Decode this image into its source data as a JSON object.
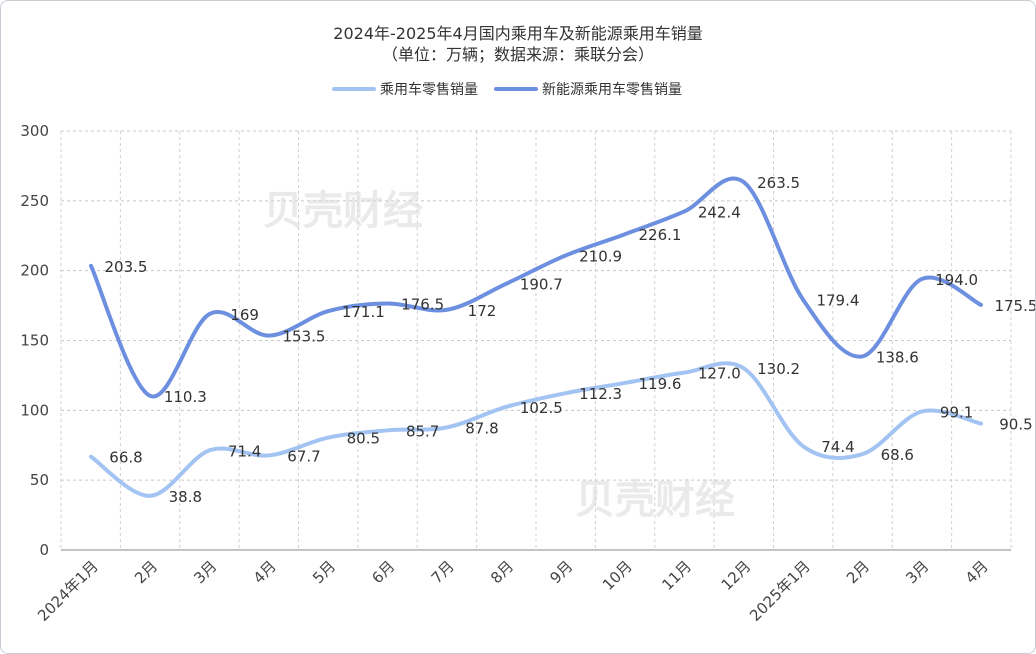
{
  "chart_data": {
    "type": "line",
    "title": "2024年-2025年4月国内乘用车及新能源乘用车销量",
    "subtitle": "（单位：万辆；数据来源：乘联分会）",
    "categories": [
      "2024年1月",
      "2月",
      "3月",
      "4月",
      "5月",
      "6月",
      "7月",
      "8月",
      "9月",
      "10月",
      "11月",
      "12月",
      "2025年1月",
      "2月",
      "3月",
      "4月"
    ],
    "series": [
      {
        "name": "乘用车零售销量",
        "color": "#a3c4f2",
        "values": [
          66.8,
          38.8,
          71.4,
          67.7,
          80.5,
          85.7,
          87.8,
          102.5,
          112.3,
          119.6,
          127.0,
          130.2,
          74.4,
          68.6,
          99.1,
          90.5
        ]
      },
      {
        "name": "新能源乘用车零售销量",
        "color": "#6d8fe0",
        "values": [
          203.5,
          110.3,
          169,
          153.5,
          171.1,
          176.5,
          172,
          190.7,
          210.9,
          226.1,
          242.4,
          263.5,
          179.4,
          138.6,
          194.0,
          175.5
        ]
      }
    ],
    "data_labels": [
      [
        "66.8",
        "38.8",
        "71.4",
        "67.7",
        "80.5",
        "85.7",
        "87.8",
        "102.5",
        "112.3",
        "119.6",
        "127.0",
        "130.2",
        "74.4",
        "68.6",
        "99.1",
        "90.5"
      ],
      [
        "203.5",
        "110.3",
        "169",
        "153.5",
        "171.1",
        "176.5",
        "172",
        "190.7",
        "210.9",
        "226.1",
        "242.4",
        "263.5",
        "179.4",
        "138.6",
        "194.0",
        "175.5"
      ]
    ],
    "ylim": [
      0,
      300
    ],
    "yticks": [
      "0",
      "50",
      "100",
      "150",
      "200",
      "250",
      "300"
    ],
    "grid": true,
    "legend": "top-center",
    "watermark": "贝壳财经"
  }
}
